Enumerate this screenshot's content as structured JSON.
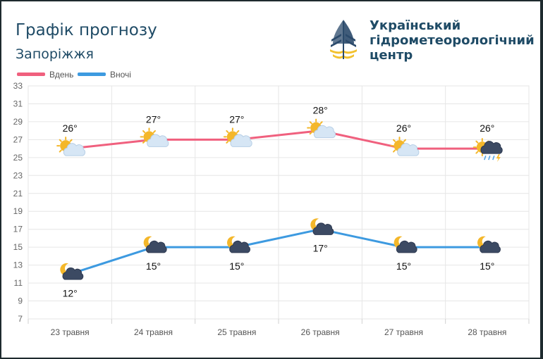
{
  "header": {
    "title": "Графік прогнозу",
    "city": "Запоріжжя",
    "org_lines": [
      "Український",
      "гідрометеорологічний",
      "центр"
    ]
  },
  "colors": {
    "day": "#f0607e",
    "night": "#3d9ae0",
    "title": "#1f4b66",
    "sun": "#f4b72a",
    "cloud": "#d6e6f5",
    "storm_cloud": "#3c4a63",
    "logo_blue": "#2b4a6b",
    "logo_yellow": "#f2c12e"
  },
  "chart_data": {
    "type": "line",
    "categories": [
      "23 травня",
      "24 травня",
      "25 травня",
      "26 травня",
      "27 травня",
      "28 травня"
    ],
    "series": [
      {
        "name": "Вдень",
        "values": [
          26,
          27,
          27,
          28,
          26,
          26
        ],
        "labels": [
          "26°",
          "27°",
          "27°",
          "28°",
          "26°",
          "26°"
        ],
        "icons": [
          "sun-cloud-icon",
          "sun-cloud-icon",
          "sun-cloud-icon",
          "sun-cloud-icon",
          "sun-cloud-icon",
          "sun-storm-rain-icon"
        ]
      },
      {
        "name": "Вночі",
        "values": [
          12,
          15,
          15,
          17,
          15,
          15
        ],
        "labels": [
          "12°",
          "15°",
          "15°",
          "17°",
          "15°",
          "15°"
        ],
        "icons": [
          "moon-cloud-icon",
          "moon-cloud-icon",
          "moon-cloud-icon",
          "moon-cloud-icon",
          "moon-cloud-icon",
          "moon-cloud-icon"
        ]
      }
    ],
    "ylim": [
      7,
      33
    ],
    "yticks": [
      7,
      9,
      11,
      13,
      15,
      17,
      19,
      21,
      23,
      25,
      27,
      29,
      31,
      33
    ],
    "grid": true,
    "legend": "top-left"
  }
}
